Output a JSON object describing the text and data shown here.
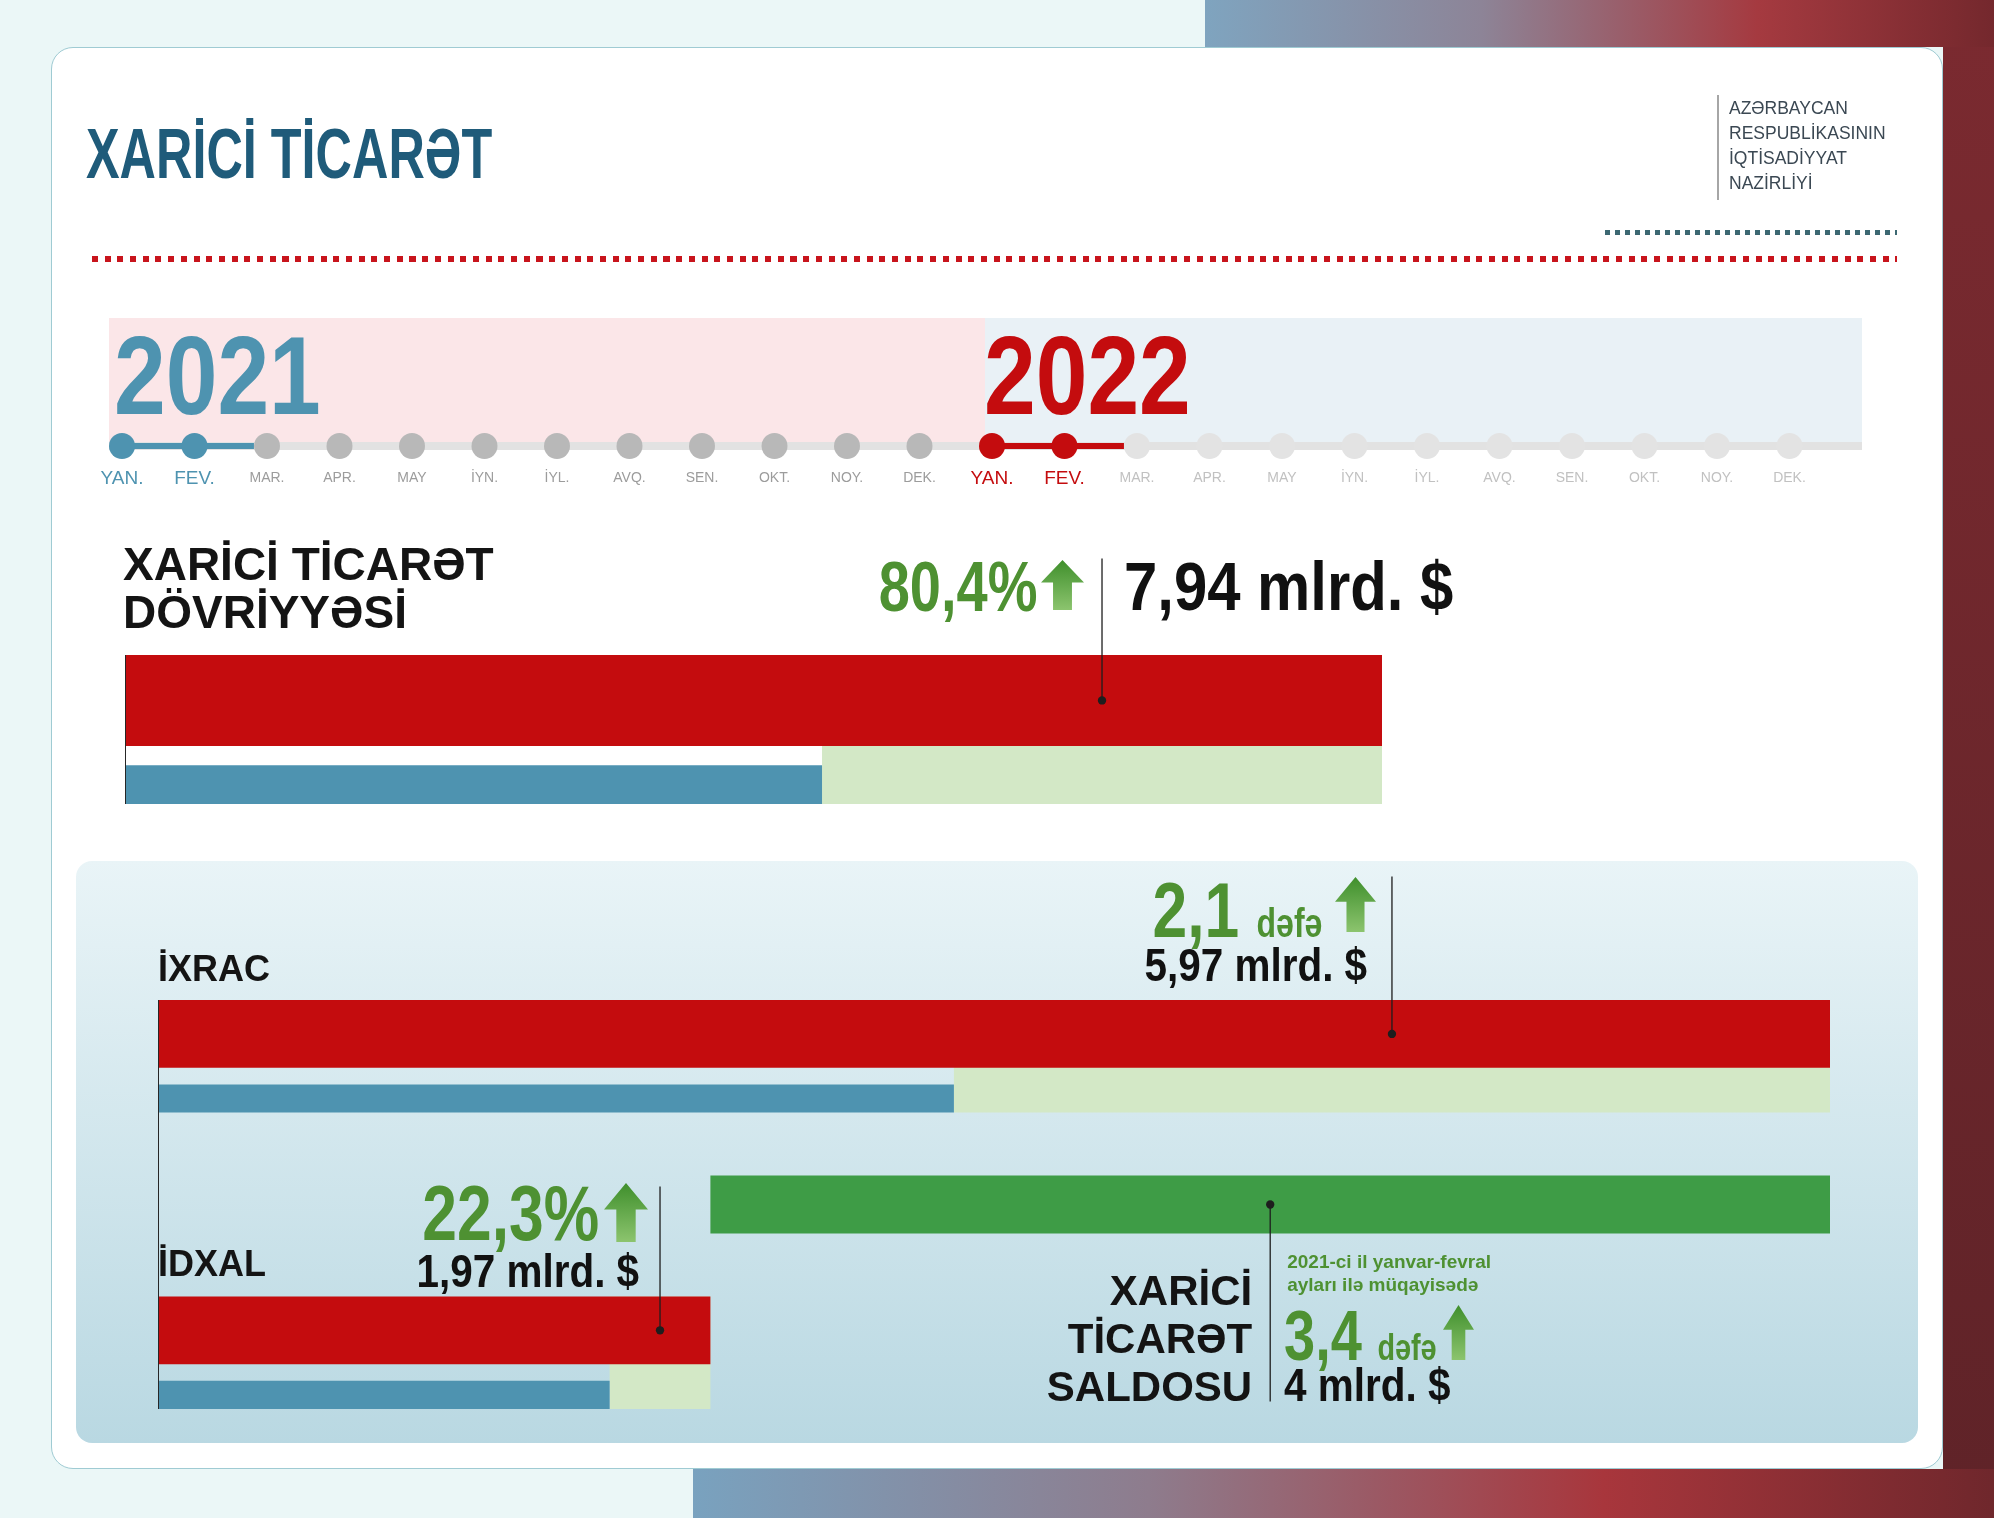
{
  "chart_data": [
    {
      "type": "other",
      "title": "XARİCİ TİCARƏT",
      "annotations": [
        "AZƏRBAYCAN RESPUBLİKASININ İQTİSADİYYAT NAZİRLİYİ"
      ]
    },
    {
      "type": "other",
      "categories": [
        "YAN.",
        "FEV.",
        "MAR.",
        "APR.",
        "MAY",
        "İYN.",
        "İYL.",
        "AVQ.",
        "SEN.",
        "OKT.",
        "NOY.",
        "DEK.",
        "YAN.",
        "FEV.",
        "MAR.",
        "APR.",
        "MAY",
        "İYN.",
        "İYL.",
        "AVQ.",
        "SEN.",
        "OKT.",
        "NOY.",
        "DEK."
      ],
      "colors": [
        "#4e93b0",
        "#4e93b0",
        "#b8b8b8",
        "#b8b8b8",
        "#b8b8b8",
        "#b8b8b8",
        "#b8b8b8",
        "#b8b8b8",
        "#b8b8b8",
        "#b8b8b8",
        "#b8b8b8",
        "#b8b8b8",
        "#c40c0e",
        "#c40c0e",
        "#e3e3e3",
        "#e3e3e3",
        "#e3e3e3",
        "#e3e3e3",
        "#e3e3e3",
        "#e3e3e3",
        "#e3e3e3",
        "#e3e3e3",
        "#e3e3e3",
        "#e3e3e3"
      ],
      "annotations": [
        "2021",
        "2022"
      ]
    },
    {
      "type": "bar",
      "orientation": "horizontal",
      "title": "XARİCİ TİCARƏT DÖVRİYYƏSİ",
      "categories": [
        null
      ],
      "series": [
        {
          "color": "#c40c0e",
          "values": [
            7.94
          ],
          "value_labels": [
            "7,94 mlrd. $"
          ]
        },
        {
          "color": "#4e93b0",
          "values": [
            4.4
          ]
        }
      ],
      "tick_labels": false,
      "bands": [
        {
          "axis": "x",
          "from": 4.4,
          "to": 7.94,
          "label": "80,4%",
          "color": "#d3e8c6"
        }
      ]
    },
    {
      "type": "bar",
      "orientation": "horizontal",
      "categories": [
        "İXRAC",
        "İDXAL"
      ],
      "series": [
        {
          "color": "#c40c0e",
          "values": [
            5.97,
            1.97
          ],
          "value_labels": [
            "5,97 mlrd. $",
            "1,97 mlrd. $"
          ]
        },
        {
          "color": "#4e93b0",
          "values": [
            2.84,
            1.61
          ]
        }
      ],
      "tick_labels": "y",
      "bands": [
        {
          "axis": "x",
          "from": 2.84,
          "to": 5.97,
          "color": "#d3e8c6"
        },
        {
          "axis": "x",
          "from": 1.61,
          "to": 1.97,
          "color": "#d3e8c6"
        },
        {
          "axis": "x",
          "from": 1.97,
          "to": 5.97,
          "label": "XARİCİ TİCARƏT SALDOSU",
          "color": "#3e9c46"
        }
      ],
      "annotations": [
        "2,1 dəfə",
        "22,3%",
        "2021-ci il yanvar-fevral ayları ilə müqayisədə",
        "3,4 dəfə",
        "4 mlrd. $"
      ]
    }
  ]
}
